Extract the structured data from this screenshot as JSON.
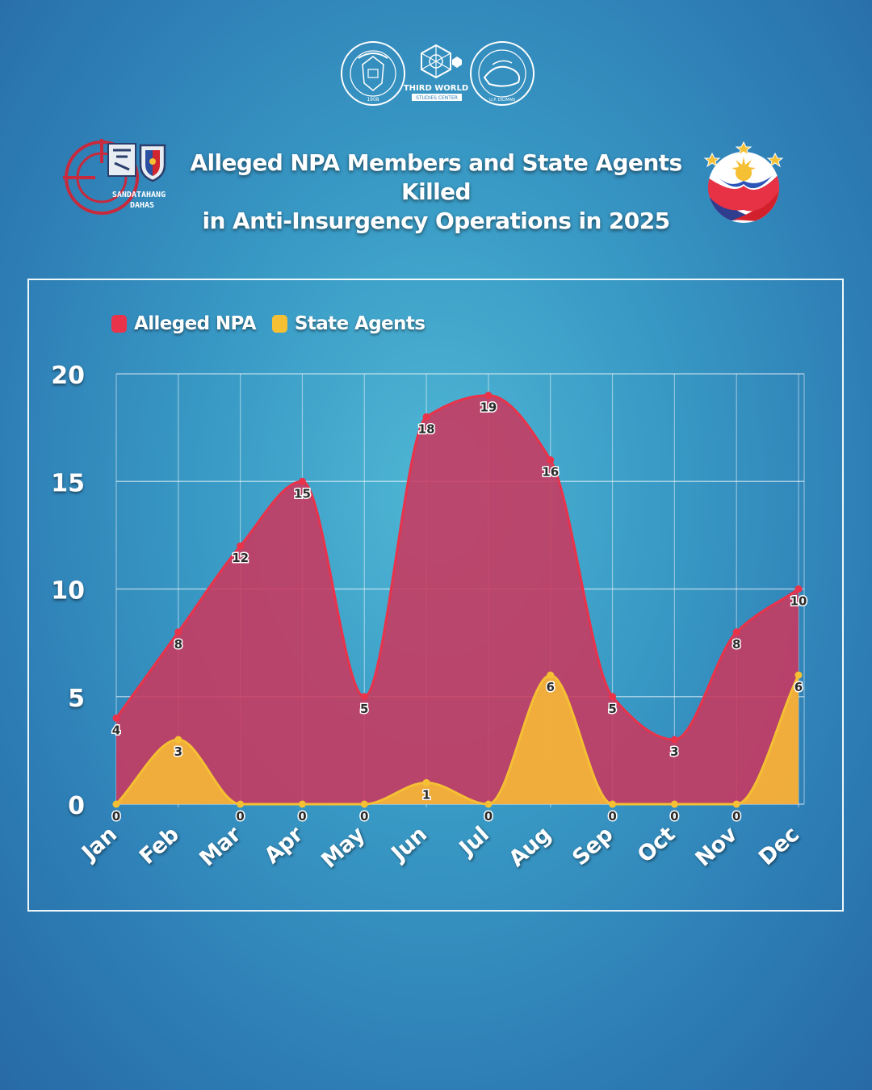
{
  "header": {
    "title_line1": "Alleged NPA Members and State Agents Killed",
    "title_line2": "in Anti-Insurgency Operations in 2025"
  },
  "logos": {
    "up_seal": {
      "top_text": "UNIVERSITY OF THE PHILIPPINES",
      "year": "1908"
    },
    "third_world": {
      "line1": "THIRD WORLD",
      "line2": "STUDIES CENTER"
    },
    "college_seal": {
      "text": "COLLEGE OF SOCIAL SCIENCES AND PHILOSOPHY",
      "bottom": "U.P. DILIMAN"
    },
    "sandatahang": {
      "line1": "SANDATAHANG",
      "line2": "DAHAS"
    }
  },
  "colors": {
    "npa": "#e8334a",
    "npa_fill": "#c9385f",
    "state": "#f5c034",
    "state_fill": "#f2b33a",
    "background": "#3a9cc6"
  },
  "chart_data": {
    "type": "area",
    "categories": [
      "Jan",
      "Feb",
      "Mar",
      "Apr",
      "May",
      "Jun",
      "Jul",
      "Aug",
      "Sep",
      "Oct",
      "Nov",
      "Dec"
    ],
    "series": [
      {
        "name": "Alleged NPA",
        "values": [
          4,
          8,
          12,
          15,
          5,
          18,
          19,
          16,
          5,
          3,
          8,
          10
        ]
      },
      {
        "name": "State Agents",
        "values": [
          0,
          3,
          0,
          0,
          0,
          1,
          0,
          6,
          0,
          0,
          0,
          6
        ]
      }
    ],
    "yticks": [
      "0",
      "5",
      "10",
      "15",
      "20"
    ],
    "ylim": [
      0,
      20
    ],
    "grid": true,
    "legend_position": "top-left",
    "smooth": true
  }
}
